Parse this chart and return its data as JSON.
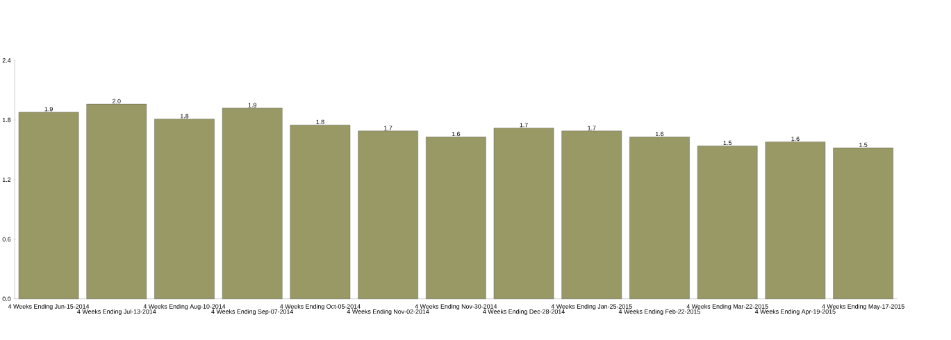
{
  "chart_data": {
    "type": "bar",
    "categories": [
      "4 Weeks Ending Jun-15-2014",
      "4 Weeks Ending Jul-13-2014",
      "4 Weeks Ending Aug-10-2014",
      "4 Weeks Ending Sep-07-2014",
      "4 Weeks Ending Oct-05-2014",
      "4 Weeks Ending Nov-02-2014",
      "4 Weeks Ending Nov-30-2014",
      "4 Weeks Ending Dec-28-2014",
      "4 Weeks Ending Jan-25-2015",
      "4 Weeks Ending Feb-22-2015",
      "4 Weeks Ending Mar-22-2015",
      "4 Weeks Ending Apr-19-2015",
      "4 Weeks Ending May-17-2015"
    ],
    "values": [
      1.88,
      1.96,
      1.81,
      1.92,
      1.75,
      1.69,
      1.63,
      1.72,
      1.69,
      1.63,
      1.54,
      1.58,
      1.52
    ],
    "value_labels": [
      "1.9",
      "2.0",
      "1.8",
      "1.9",
      "1.8",
      "1.7",
      "1.6",
      "1.7",
      "1.7",
      "1.6",
      "1.5",
      "1.6",
      "1.5"
    ],
    "color": "#999966",
    "ylim": [
      0,
      2.4
    ],
    "yticks": [
      {
        "value": 0,
        "label": "0.0"
      },
      {
        "value": 0.6,
        "label": "0.6"
      },
      {
        "value": 1.2,
        "label": "1.2"
      },
      {
        "value": 1.8,
        "label": "1.8"
      },
      {
        "value": 2.4,
        "label": "2.4"
      }
    ],
    "grid": false
  }
}
